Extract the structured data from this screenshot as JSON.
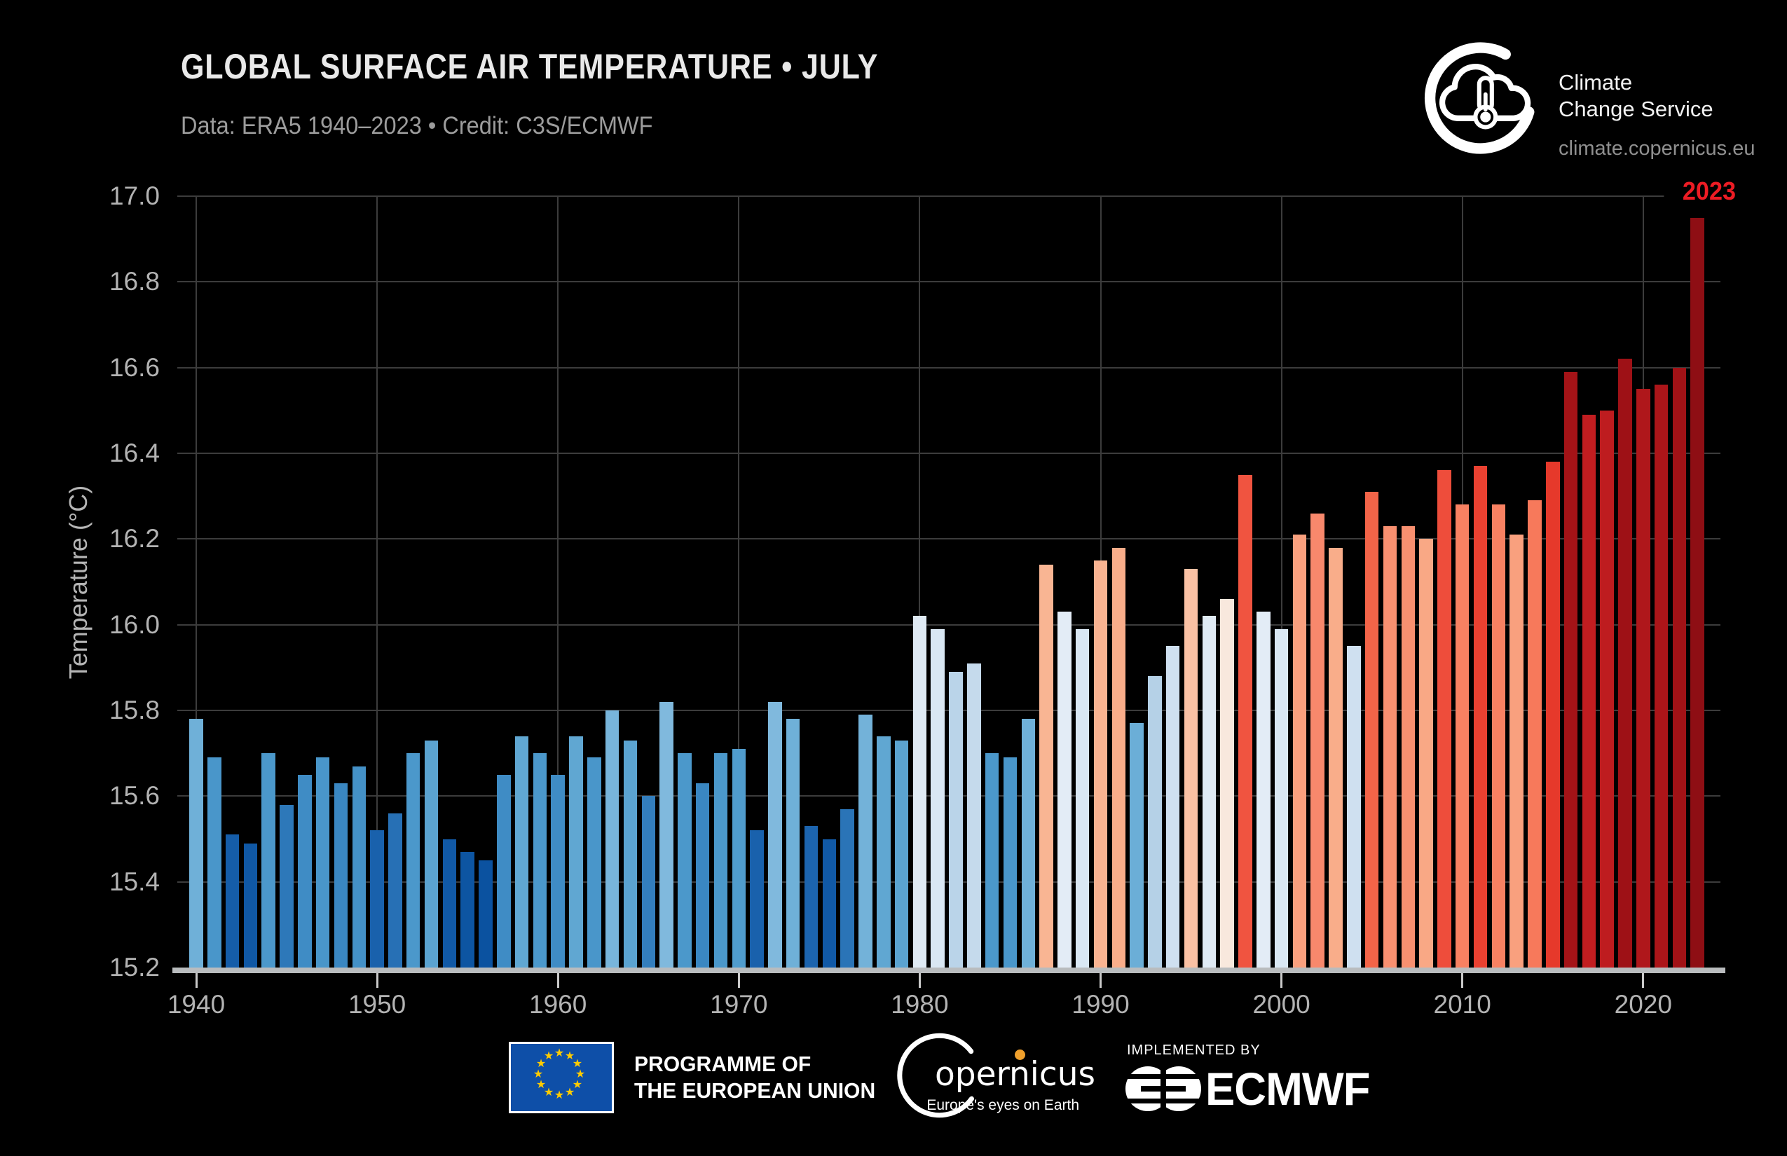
{
  "header": {
    "title": "GLOBAL SURFACE AIR TEMPERATURE • JULY",
    "subtitle": "Data: ERA5 1940–2023 • Credit: C3S/ECMWF"
  },
  "branding": {
    "service_line1": "Climate",
    "service_line2": "Change Service",
    "website": "climate.copernicus.eu"
  },
  "annotation": {
    "label": "2023",
    "color": "#ed1c24"
  },
  "chart_data": {
    "type": "bar",
    "title": "GLOBAL SURFACE AIR TEMPERATURE • JULY",
    "xlabel": "",
    "ylabel": "Temperature (°C)",
    "ylim": [
      15.2,
      17.0
    ],
    "grid": true,
    "yticks": [
      "15.2",
      "15.4",
      "15.6",
      "15.8",
      "16.0",
      "16.2",
      "16.4",
      "16.6",
      "16.8",
      "17.0"
    ],
    "xticks": [
      1940,
      1950,
      1960,
      1970,
      1980,
      1990,
      2000,
      2010,
      2020
    ],
    "years": [
      1940,
      1941,
      1942,
      1943,
      1944,
      1945,
      1946,
      1947,
      1948,
      1949,
      1950,
      1951,
      1952,
      1953,
      1954,
      1955,
      1956,
      1957,
      1958,
      1959,
      1960,
      1961,
      1962,
      1963,
      1964,
      1965,
      1966,
      1967,
      1968,
      1969,
      1970,
      1971,
      1972,
      1973,
      1974,
      1975,
      1976,
      1977,
      1978,
      1979,
      1980,
      1981,
      1982,
      1983,
      1984,
      1985,
      1986,
      1987,
      1988,
      1989,
      1990,
      1991,
      1992,
      1993,
      1994,
      1995,
      1996,
      1997,
      1998,
      1999,
      2000,
      2001,
      2002,
      2003,
      2004,
      2005,
      2006,
      2007,
      2008,
      2009,
      2010,
      2011,
      2012,
      2013,
      2014,
      2015,
      2016,
      2017,
      2018,
      2019,
      2020,
      2021,
      2022,
      2023
    ],
    "values": [
      15.78,
      15.69,
      15.51,
      15.49,
      15.7,
      15.58,
      15.65,
      15.69,
      15.63,
      15.67,
      15.52,
      15.56,
      15.7,
      15.73,
      15.5,
      15.47,
      15.45,
      15.65,
      15.74,
      15.7,
      15.65,
      15.74,
      15.69,
      15.8,
      15.73,
      15.6,
      15.82,
      15.7,
      15.63,
      15.7,
      15.71,
      15.52,
      15.82,
      15.78,
      15.53,
      15.5,
      15.57,
      15.79,
      15.74,
      15.73,
      16.02,
      15.99,
      15.89,
      15.91,
      15.7,
      15.69,
      15.78,
      16.14,
      16.03,
      15.99,
      16.15,
      16.18,
      15.77,
      15.88,
      15.95,
      16.13,
      16.02,
      16.06,
      16.35,
      16.03,
      15.99,
      16.21,
      16.26,
      16.18,
      15.95,
      16.31,
      16.23,
      16.23,
      16.2,
      16.36,
      16.28,
      16.37,
      16.28,
      16.21,
      16.29,
      16.38,
      16.59,
      16.49,
      16.5,
      16.62,
      16.55,
      16.56,
      16.6,
      16.95
    ],
    "highlight_year": 2023,
    "color_scale": [
      [
        15.45,
        "#0b52a0"
      ],
      [
        15.5,
        "#1159a6"
      ],
      [
        15.54,
        "#2068b1"
      ],
      [
        15.58,
        "#2d78b9"
      ],
      [
        15.62,
        "#3884c0"
      ],
      [
        15.66,
        "#418fc6"
      ],
      [
        15.7,
        "#4b98cb"
      ],
      [
        15.74,
        "#60a7d2"
      ],
      [
        15.78,
        "#6fb0d8"
      ],
      [
        15.82,
        "#80b9dd"
      ],
      [
        15.86,
        "#a0c8e2"
      ],
      [
        15.88,
        "#b5d1e7"
      ],
      [
        15.91,
        "#c5daec"
      ],
      [
        15.95,
        "#cfe0f0"
      ],
      [
        15.99,
        "#d9e7f3"
      ],
      [
        16.02,
        "#dfeaf4"
      ],
      [
        16.04,
        "#e7eef7"
      ],
      [
        16.055,
        "#f6ede4"
      ],
      [
        16.07,
        "#fbdfce"
      ],
      [
        16.11,
        "#fbd9c6"
      ],
      [
        16.14,
        "#f9b593"
      ],
      [
        16.17,
        "#f9af8d"
      ],
      [
        16.2,
        "#f9a885"
      ],
      [
        16.23,
        "#f89070"
      ],
      [
        16.26,
        "#f8886c"
      ],
      [
        16.285,
        "#f87f60"
      ],
      [
        16.305,
        "#f3664a"
      ],
      [
        16.33,
        "#f25a40"
      ],
      [
        16.355,
        "#f05340"
      ],
      [
        16.375,
        "#e83b2c"
      ],
      [
        16.4,
        "#dd3026"
      ],
      [
        16.45,
        "#cd2422"
      ],
      [
        16.49,
        "#c11d20"
      ],
      [
        16.53,
        "#b5191d"
      ],
      [
        16.57,
        "#a91418"
      ],
      [
        16.61,
        "#9e1116"
      ],
      [
        16.8,
        "#970f15"
      ],
      [
        16.95,
        "#8e0e14"
      ]
    ]
  },
  "colors": {
    "background": "#000000",
    "grid": "#3c3c3c",
    "axis_line": "#b9bcbe",
    "tick_label": "#b3b3b3",
    "title": "#e9e9e9",
    "subtitle": "#9c9c9c",
    "annotation_red": "#ed1c24",
    "eu_flag_blue": "#0e4fa8",
    "eu_star_yellow": "#ffcc00",
    "copernicus_dot_orange": "#f0a02c"
  },
  "footer": {
    "eu_label_line1": "PROGRAMME OF",
    "eu_label_line2": "THE EUROPEAN UNION",
    "copernicus_name": "opernicus",
    "copernicus_tagline": "Europe's eyes on Earth",
    "implemented_by": "IMPLEMENTED BY",
    "ecmwf_name": "ECMWF"
  }
}
